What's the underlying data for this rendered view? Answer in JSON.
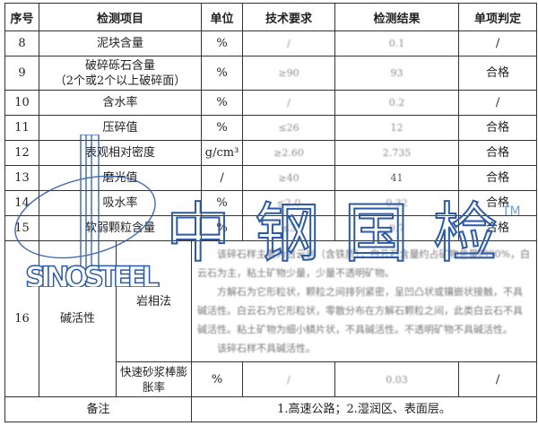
{
  "headers": [
    "序号",
    "检测项目",
    "单位",
    "技术要求",
    "检测结果",
    "单项判定"
  ],
  "rows": [
    {
      "no": "8",
      "item": "泥块含量",
      "unit": "%",
      "req": "/",
      "result": "0.1",
      "verdict": "/"
    },
    {
      "no": "9",
      "item": "破碎砾石含量",
      "item2": "（2个或2个以上破碎面）",
      "unit": "%",
      "req": "≥90",
      "result": "93",
      "verdict": "合格"
    },
    {
      "no": "10",
      "item": "含水率",
      "unit": "%",
      "req": "/",
      "result": "0.2",
      "verdict": "/"
    },
    {
      "no": "11",
      "item": "压碎值",
      "unit": "%",
      "req": "≤26",
      "result": "12",
      "verdict": "合格"
    },
    {
      "no": "12",
      "item": "表观相对密度",
      "unit": "g/cm³",
      "req": "≥2.60",
      "result": "2.735",
      "verdict": "合格"
    },
    {
      "no": "13",
      "item": "磨光值",
      "unit": "/",
      "req": "≥40",
      "result": "41",
      "verdict": "合格"
    },
    {
      "no": "14",
      "item": "吸水率",
      "unit": "%",
      "req": "≤2.0",
      "result": "0.32",
      "verdict": "合格"
    },
    {
      "no": "15",
      "item": "软弱颗粒含量",
      "unit": "%",
      "req": "≤3",
      "result": "0.7",
      "verdict": "合格"
    }
  ],
  "row16": {
    "no": "16",
    "item": "碱活性",
    "method1": "岩相法",
    "method1_text": [
      "该碎石样主要为白云岩（含铁质），白云石含量约占矿物总量的90%，白云石为主，粘土矿物少量，少量不透明矿物。",
      "方解石为它形粒状，颗粒之间排列紧密，呈凹凸状或镶嵌状接触，不具碱活性。白云石为它形粒状，零散分布在方解石颗粒之间，此类白云石不具碱活性。粘土矿物为细小鳞片状，不具碱活性。不透明矿物不具碱活性。",
      "该碎石样不具碱活性。"
    ],
    "method2": "快速砂浆棒膨胀率",
    "unit2": "%",
    "req2": "/",
    "result2": "0.03",
    "verdict2": "/"
  },
  "remarks": {
    "label": "备注",
    "text": "1.高速公路；2.湿润区、表面层。"
  },
  "watermark": {
    "brand_cn": "中钢国检",
    "brand_en": "SINOSTEEL",
    "tm": "TM",
    "color": "#2a5aa8"
  }
}
